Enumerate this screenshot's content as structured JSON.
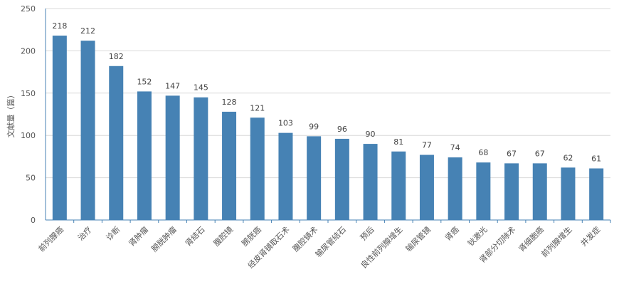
{
  "chart_data": {
    "type": "bar",
    "title": "",
    "xlabel": "",
    "ylabel": "文献量（篇）",
    "ylim": [
      0,
      250
    ],
    "yticks": [
      0,
      50,
      100,
      150,
      200,
      250
    ],
    "grid": true,
    "bar_color": "#4682b4",
    "categories": [
      "前列腺癌",
      "治疗",
      "诊断",
      "肾肿瘤",
      "膀胱肿瘤",
      "肾结石",
      "腹腔镜",
      "膀胱癌",
      "经皮肾镜取石术",
      "腹腔镜术",
      "输尿管结石",
      "预后",
      "良性前列腺增生",
      "输尿管镜",
      "肾癌",
      "钬激光",
      "肾部分切除术",
      "肾细胞癌",
      "前列腺增生",
      "并发症"
    ],
    "values": [
      218,
      212,
      182,
      152,
      147,
      145,
      128,
      121,
      103,
      99,
      96,
      90,
      81,
      77,
      74,
      68,
      67,
      67,
      62,
      61
    ]
  }
}
